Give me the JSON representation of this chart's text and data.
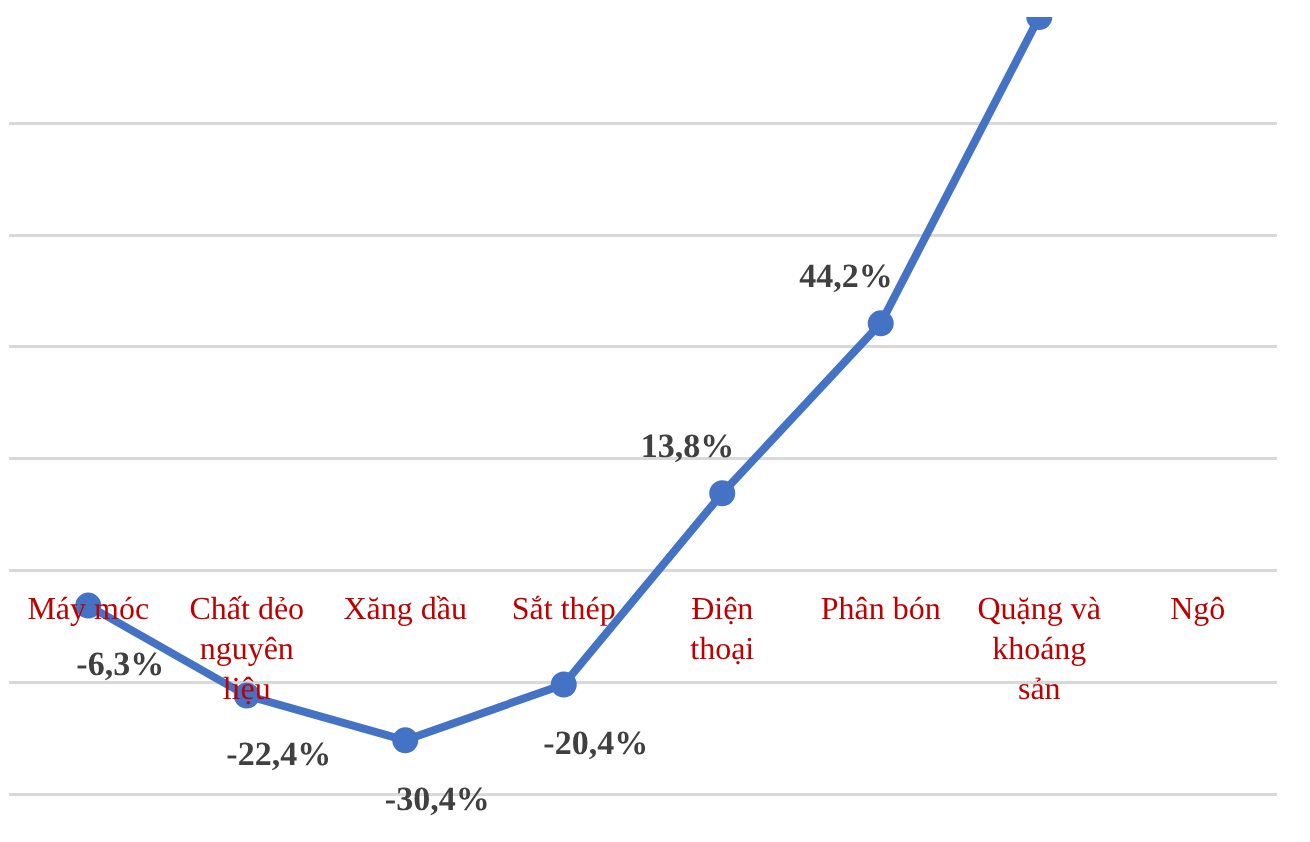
{
  "chart_data": {
    "type": "line",
    "categories": [
      "Máy móc",
      "Chất dẻo nguyên liệu",
      "Xăng dầu",
      "Sắt thép",
      "Điện thoại",
      "Phân bón",
      "Quặng và khoáng sản",
      "Ngô"
    ],
    "values": [
      -6.3,
      -22.4,
      -30.4,
      -20.4,
      13.8,
      44.2,
      99,
      null
    ],
    "value_labels": [
      "-6,3%",
      "-22,4%",
      "-30,4%",
      "-20,4%",
      "13,8%",
      "44,2%",
      null,
      null
    ],
    "color": "#4472c4",
    "marker": "circle",
    "line_style": "solid",
    "yticks": [
      {
        "value": -40,
        "label": null
      },
      {
        "value": -20,
        "label": null
      },
      {
        "value": 0,
        "label": null
      },
      {
        "value": 20,
        "label": null
      },
      {
        "value": 40,
        "label": null
      },
      {
        "value": 60,
        "label": null
      },
      {
        "value": 80,
        "label": null
      }
    ],
    "grid": "y",
    "tick_labels": "x",
    "legend": false
  }
}
